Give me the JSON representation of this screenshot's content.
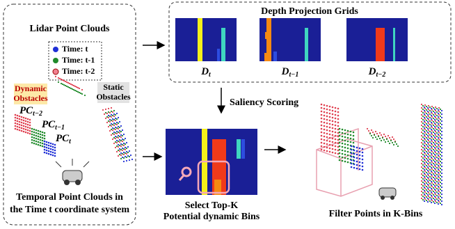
{
  "left": {
    "title": "Lidar Point Clouds",
    "legend": [
      "Time: t",
      "Time: t-1",
      "Time: t-2"
    ],
    "dynamic_label": [
      "Dynamic",
      "Obstacles"
    ],
    "static_label": [
      "Static",
      "Obstacles"
    ],
    "pc": [
      {
        "base": "PC",
        "sub": "t−2"
      },
      {
        "base": "PC",
        "sub": "t−1"
      },
      {
        "base": "PC",
        "sub": "t"
      }
    ],
    "caption": [
      "Temporal Point Clouds in",
      "the Time t coordinate system"
    ]
  },
  "top": {
    "title": "Depth Projection Grids",
    "grids": [
      {
        "base": "D",
        "sub": "t"
      },
      {
        "base": "D",
        "sub": "t−1"
      },
      {
        "base": "D",
        "sub": "t−2"
      }
    ]
  },
  "saliency": "Saliency Scoring",
  "middle": {
    "caption": [
      "Select Top-K",
      "Potential dynamic Bins"
    ]
  },
  "right": {
    "caption": "Filter Points in K-Bins"
  }
}
